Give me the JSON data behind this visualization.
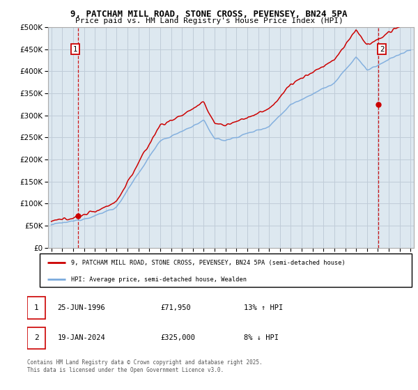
{
  "title1": "9, PATCHAM MILL ROAD, STONE CROSS, PEVENSEY, BN24 5PA",
  "title2": "Price paid vs. HM Land Registry's House Price Index (HPI)",
  "ylim": [
    0,
    500000
  ],
  "xlim_start": 1993.7,
  "xlim_end": 2027.3,
  "ytick_labels": [
    "£0",
    "£50K",
    "£100K",
    "£150K",
    "£200K",
    "£250K",
    "£300K",
    "£350K",
    "£400K",
    "£450K",
    "£500K"
  ],
  "ytick_values": [
    0,
    50000,
    100000,
    150000,
    200000,
    250000,
    300000,
    350000,
    400000,
    450000,
    500000
  ],
  "line_color_red": "#cc0000",
  "line_color_blue": "#7aaadd",
  "bg_color": "#dde8f0",
  "grid_color": "#c0ccd8",
  "marker1_date": 1996.48,
  "marker1_price": 71950,
  "marker2_date": 2024.05,
  "marker2_price": 325000,
  "legend_label_red": "9, PATCHAM MILL ROAD, STONE CROSS, PEVENSEY, BN24 5PA (semi-detached house)",
  "legend_label_blue": "HPI: Average price, semi-detached house, Wealden",
  "info1_num": "1",
  "info1_date": "25-JUN-1996",
  "info1_price": "£71,950",
  "info1_hpi": "13% ↑ HPI",
  "info2_num": "2",
  "info2_date": "19-JAN-2024",
  "info2_price": "£325,000",
  "info2_hpi": "8% ↓ HPI",
  "footnote": "Contains HM Land Registry data © Crown copyright and database right 2025.\nThis data is licensed under the Open Government Licence v3.0."
}
